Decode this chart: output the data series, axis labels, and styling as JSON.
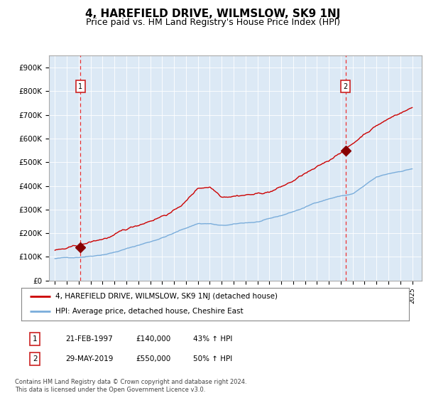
{
  "title": "4, HAREFIELD DRIVE, WILMSLOW, SK9 1NJ",
  "subtitle": "Price paid vs. HM Land Registry's House Price Index (HPI)",
  "title_fontsize": 11,
  "subtitle_fontsize": 9,
  "plot_bg_color": "#dce9f5",
  "ylim": [
    0,
    950000
  ],
  "yticks": [
    0,
    100000,
    200000,
    300000,
    400000,
    500000,
    600000,
    700000,
    800000,
    900000
  ],
  "ytick_labels": [
    "£0",
    "£100K",
    "£200K",
    "£300K",
    "£400K",
    "£500K",
    "£600K",
    "£700K",
    "£800K",
    "£900K"
  ],
  "red_line_color": "#cc0000",
  "blue_line_color": "#7aaddb",
  "vline_color": "#ee3333",
  "marker_color": "#880000",
  "sale1_year": 1997.13,
  "sale1_price": 140000,
  "sale2_year": 2019.41,
  "sale2_price": 550000,
  "legend_red_label": "4, HAREFIELD DRIVE, WILMSLOW, SK9 1NJ (detached house)",
  "legend_blue_label": "HPI: Average price, detached house, Cheshire East",
  "table_row1": [
    "1",
    "21-FEB-1997",
    "£140,000",
    "43% ↑ HPI"
  ],
  "table_row2": [
    "2",
    "29-MAY-2019",
    "£550,000",
    "50% ↑ HPI"
  ],
  "footer_text": "Contains HM Land Registry data © Crown copyright and database right 2024.\nThis data is licensed under the Open Government Licence v3.0.",
  "xlim_left": 1994.5,
  "xlim_right": 2025.8
}
